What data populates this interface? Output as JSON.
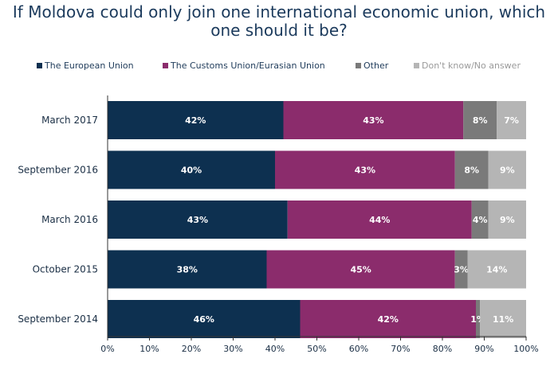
{
  "chart_data": {
    "type": "bar",
    "orientation": "horizontal",
    "stacked": true,
    "title": "If Moldova could only join one international economic union, which one should it be?",
    "categories": [
      "March 2017",
      "September 2016",
      "March 2016",
      "October 2015",
      "September 2014"
    ],
    "series": [
      {
        "name": "The European Union",
        "color": "#0d3050",
        "values": [
          42,
          40,
          43,
          38,
          46
        ],
        "labels": [
          "42%",
          "40%",
          "43%",
          "38%",
          "46%"
        ]
      },
      {
        "name": "The Customs Union/Eurasian Union",
        "color": "#8b2c6c",
        "values": [
          43,
          43,
          44,
          45,
          42
        ],
        "labels": [
          "43%",
          "43%",
          "44%",
          "45%",
          "42%"
        ]
      },
      {
        "name": "Other",
        "color": "#7a7a7a",
        "values": [
          8,
          8,
          4,
          3,
          1
        ],
        "labels": [
          "8%",
          "8%",
          "4%",
          "3%",
          "1%"
        ]
      },
      {
        "name": "Don't know/No answer",
        "color": "#b5b5b5",
        "values": [
          7,
          9,
          9,
          14,
          11
        ],
        "labels": [
          "7%",
          "9%",
          "9%",
          "14%",
          "11%"
        ]
      }
    ],
    "xlim": [
      0,
      100
    ],
    "xticks": [
      "0%",
      "10%",
      "20%",
      "30%",
      "40%",
      "50%",
      "60%",
      "70%",
      "80%",
      "90%",
      "100%"
    ],
    "legend": "top",
    "grid": false
  }
}
